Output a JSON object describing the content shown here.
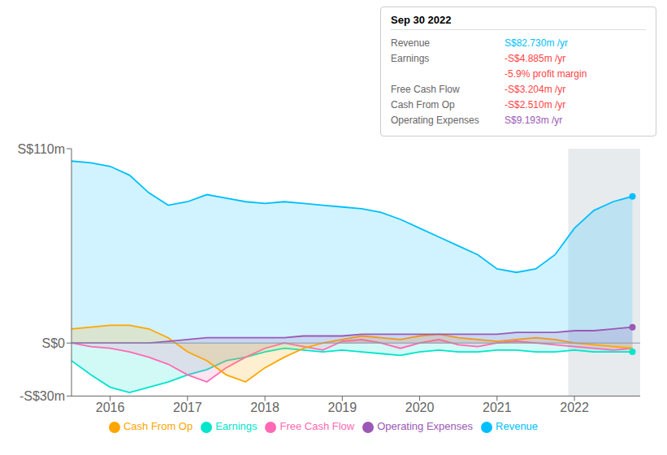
{
  "chart_data": {
    "type": "area",
    "x": [
      2015.5,
      2015.75,
      2016.0,
      2016.25,
      2016.5,
      2016.75,
      2017.0,
      2017.25,
      2017.5,
      2017.75,
      2018.0,
      2018.25,
      2018.5,
      2018.75,
      2019.0,
      2019.25,
      2019.5,
      2019.75,
      2020.0,
      2020.25,
      2020.5,
      2020.75,
      2021.0,
      2021.25,
      2021.5,
      2021.75,
      2022.0,
      2022.25,
      2022.5,
      2022.75
    ],
    "xlim": [
      2015.5,
      2022.85
    ],
    "xticks": [
      2016,
      2017,
      2018,
      2019,
      2020,
      2021,
      2022
    ],
    "ylim": [
      -30,
      110
    ],
    "yticks": [
      {
        "value": -30,
        "label": "-S$30m"
      },
      {
        "value": 0,
        "label": "S$0"
      },
      {
        "value": 110,
        "label": "S$110m"
      }
    ],
    "highlight_x": [
      2021.92,
      2022.85
    ],
    "legend": "bottom",
    "grid": false,
    "series": [
      {
        "name": "Revenue",
        "color": "#00bfff",
        "marker": "last",
        "values": [
          103,
          102,
          100,
          95,
          85,
          78,
          80,
          84,
          82,
          80,
          79,
          80,
          79,
          78,
          77,
          76,
          74,
          70,
          65,
          60,
          55,
          50,
          42,
          40,
          42,
          50,
          65,
          75,
          80,
          83
        ]
      },
      {
        "name": "Earnings",
        "color": "#00e5cc",
        "marker": "last",
        "values": [
          -10,
          -18,
          -25,
          -28,
          -25,
          -22,
          -18,
          -15,
          -10,
          -8,
          -5,
          -3,
          -4,
          -5,
          -4,
          -5,
          -6,
          -7,
          -5,
          -4,
          -5,
          -5,
          -4,
          -4,
          -5,
          -5,
          -4,
          -5,
          -5,
          -5
        ]
      },
      {
        "name": "Free Cash Flow",
        "color": "#ff69b4",
        "marker": "none",
        "values": [
          0,
          -2,
          -3,
          -5,
          -8,
          -12,
          -18,
          -22,
          -14,
          -8,
          -3,
          0,
          -2,
          -4,
          1,
          2,
          0,
          -3,
          0,
          2,
          -1,
          -2,
          0,
          1,
          0,
          -1,
          -2,
          -3,
          -4,
          -3
        ]
      },
      {
        "name": "Cash From Op",
        "color": "#ffa500",
        "marker": "none",
        "values": [
          8,
          9,
          10,
          10,
          8,
          3,
          -5,
          -10,
          -18,
          -22,
          -14,
          -8,
          -3,
          0,
          2,
          4,
          3,
          2,
          4,
          5,
          3,
          2,
          1,
          2,
          3,
          2,
          0,
          -1,
          -2,
          -3
        ]
      },
      {
        "name": "Operating Expenses",
        "color": "#9b59b6",
        "marker": "last",
        "values": [
          0,
          0,
          0,
          0,
          0,
          1,
          2,
          3,
          3,
          3,
          3,
          3,
          4,
          4,
          4,
          5,
          5,
          5,
          5,
          5,
          5,
          5,
          5,
          6,
          6,
          6,
          7,
          7,
          8,
          9
        ]
      }
    ],
    "annotations": {
      "title": "Sep 30 2022",
      "rows": [
        {
          "label": "Revenue",
          "text": "S$82.730m /yr",
          "color": "#00bfff"
        },
        {
          "label": "Earnings",
          "text": "-S$4.885m /yr",
          "color": "#ff4444"
        },
        {
          "text": "-5.9% profit margin",
          "color": "#ff4444"
        },
        {
          "label": "Free Cash Flow",
          "text": "-S$3.204m /yr",
          "color": "#ff4444"
        },
        {
          "label": "Cash From Op",
          "text": "-S$2.510m /yr",
          "color": "#ff4444"
        },
        {
          "label": "Operating Expenses",
          "text": "S$9.193m /yr",
          "color": "#9b59b6"
        }
      ]
    }
  }
}
